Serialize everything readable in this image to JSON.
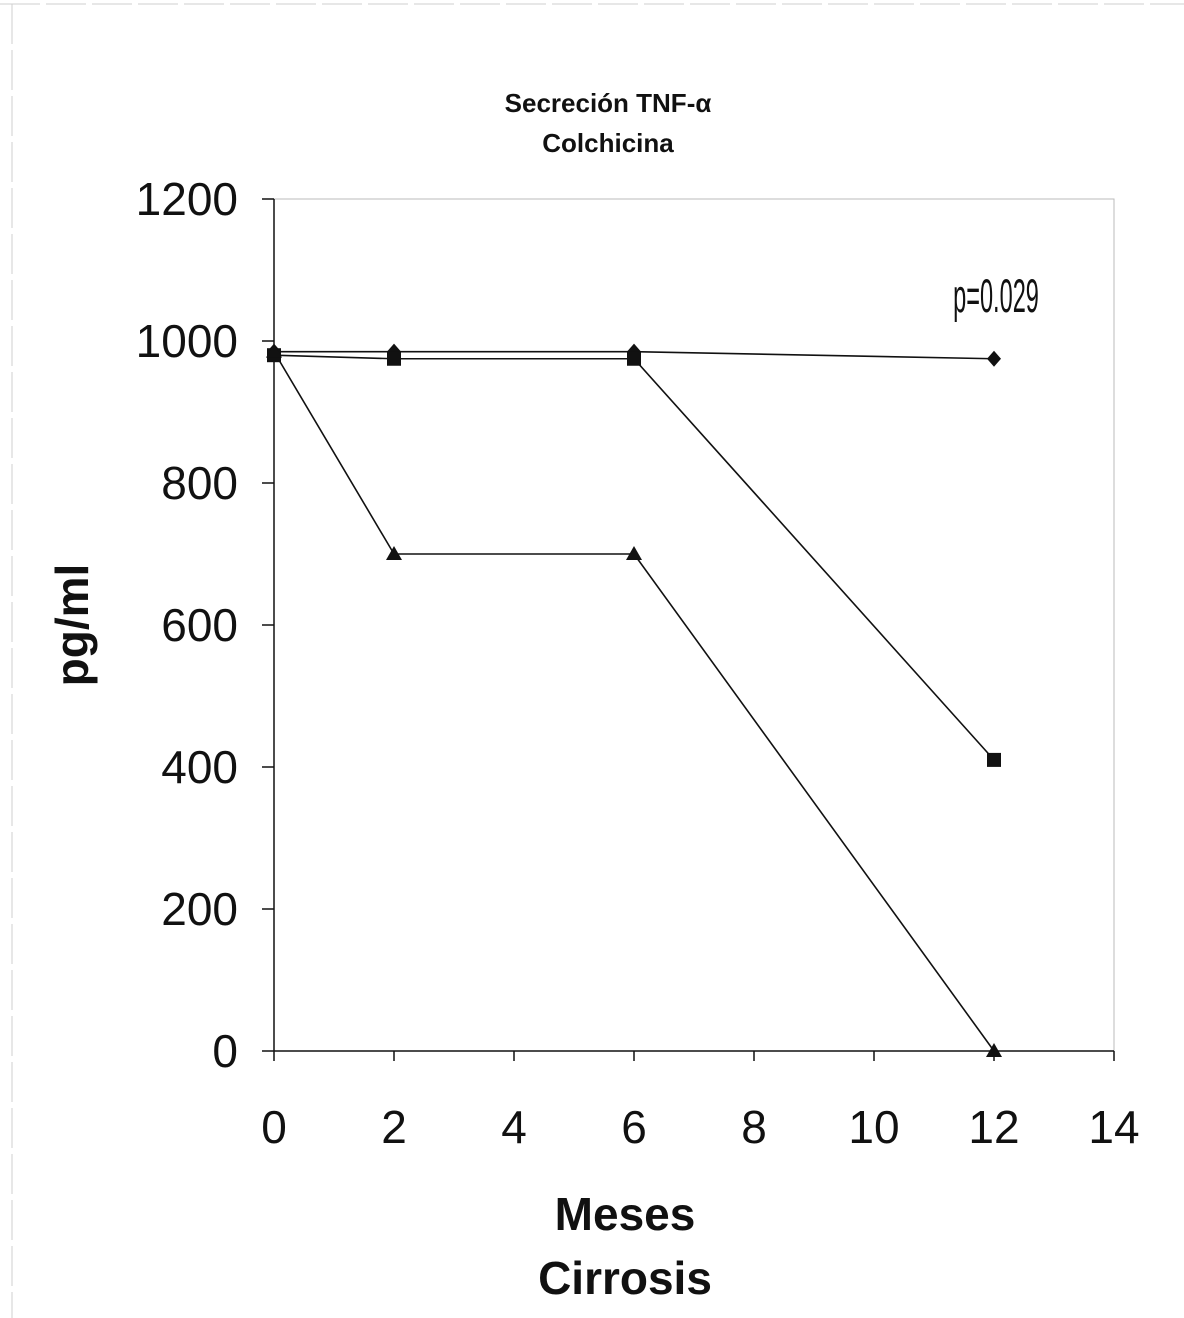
{
  "chart_data": {
    "type": "line",
    "title": "Secreción TNF-α",
    "subtitle": "Colchicina",
    "xlabel": "Meses",
    "xlabel2": "Cirrosis",
    "ylabel": "pg/ml",
    "xlim": [
      0,
      14
    ],
    "ylim": [
      0,
      1200
    ],
    "x_ticks": [
      0,
      2,
      4,
      6,
      8,
      10,
      12,
      14
    ],
    "y_ticks": [
      0,
      200,
      400,
      600,
      800,
      1000,
      1200
    ],
    "grid": false,
    "annotation": "p=0.029",
    "series": [
      {
        "marker": "diamond",
        "points": [
          [
            0,
            985
          ],
          [
            2,
            985
          ],
          [
            6,
            985
          ],
          [
            12,
            975
          ]
        ]
      },
      {
        "marker": "square",
        "points": [
          [
            0,
            980
          ],
          [
            2,
            975
          ],
          [
            6,
            975
          ],
          [
            12,
            410
          ]
        ]
      },
      {
        "marker": "triangle",
        "points": [
          [
            0,
            985
          ],
          [
            2,
            700
          ],
          [
            6,
            700
          ],
          [
            12,
            0
          ]
        ]
      }
    ]
  }
}
